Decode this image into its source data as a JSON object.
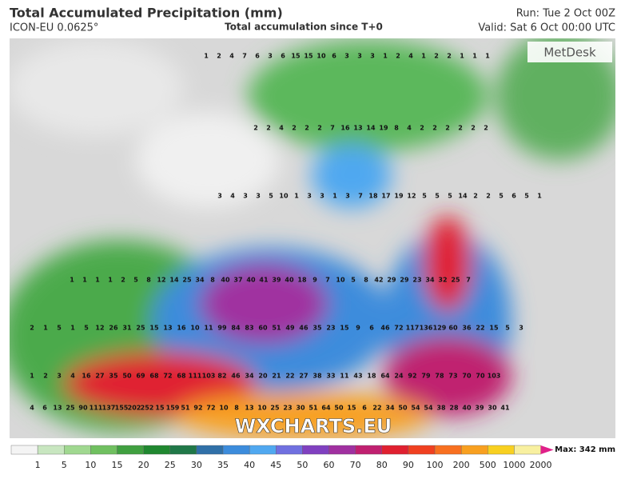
{
  "header": {
    "title": "Total Accumulated Precipitation (mm)",
    "model": "ICON-EU 0.0625°",
    "subtitle": "Total accumulation since T+0",
    "run": "Run: Tue 2 Oct 00Z",
    "valid": "Valid: Sat 6 Oct 00:00 UTC"
  },
  "logo": "MetDesk",
  "watermark": "WXCHARTS.EU",
  "map_labels": [
    [
      1,
      2,
      4,
      7,
      6,
      3,
      6,
      15,
      15,
      10,
      6,
      3,
      3,
      3,
      1,
      2,
      4,
      1,
      2,
      2,
      1,
      1,
      1
    ],
    [
      2,
      2,
      4,
      2,
      2,
      2,
      7,
      16,
      13,
      14,
      19,
      8,
      4,
      2,
      2,
      2,
      2,
      2,
      2
    ],
    [
      3,
      4,
      3,
      3,
      5,
      10,
      1,
      3,
      3,
      1,
      3,
      7,
      18,
      17,
      19,
      12,
      5,
      5,
      5,
      14,
      2,
      2,
      5,
      6,
      5,
      1
    ],
    [
      1,
      1,
      1,
      1,
      2,
      5,
      8,
      12,
      14,
      25,
      34,
      8,
      40,
      37,
      40,
      41,
      39,
      40,
      18,
      9,
      7,
      10,
      5,
      8,
      42,
      29,
      29,
      23,
      34,
      32,
      25,
      7
    ],
    [
      2,
      1,
      5,
      1,
      5,
      12,
      26,
      31,
      25,
      15,
      13,
      16,
      10,
      11,
      99,
      84,
      83,
      60,
      51,
      49,
      46,
      35,
      23,
      15,
      9,
      6,
      46,
      72,
      117,
      136,
      129,
      60,
      36,
      22,
      15,
      5,
      3
    ],
    [
      1,
      2,
      3,
      4,
      16,
      27,
      35,
      50,
      69,
      68,
      72,
      68,
      111,
      103,
      82,
      46,
      34,
      20,
      21,
      22,
      27,
      38,
      33,
      11,
      43,
      18,
      64,
      24,
      92,
      79,
      78,
      73,
      70,
      70,
      103
    ],
    [
      4,
      6,
      13,
      25,
      90,
      111,
      137,
      155,
      202,
      252,
      15,
      159,
      51,
      92,
      72,
      10,
      8,
      13,
      10,
      25,
      23,
      30,
      51,
      64,
      50,
      15,
      6,
      22,
      34,
      50,
      54,
      54,
      38,
      28,
      40,
      39,
      30,
      41
    ]
  ],
  "colorbar": {
    "ticks": [
      1,
      5,
      10,
      15,
      20,
      25,
      30,
      35,
      40,
      45,
      50,
      60,
      70,
      80,
      90,
      100,
      200,
      500,
      1000,
      2000
    ],
    "colors": [
      "#f4f4f4",
      "#c8e6c0",
      "#a0d890",
      "#70c060",
      "#40a040",
      "#208830",
      "#207848",
      "#3070a8",
      "#3c8cdc",
      "#50a8f0",
      "#7070e0",
      "#8040c0",
      "#a030a0",
      "#c02070",
      "#e02030",
      "#f04020",
      "#f87020",
      "#f8a020",
      "#f8d020",
      "#f8f0a0"
    ],
    "max": "Max: 342 mm"
  }
}
